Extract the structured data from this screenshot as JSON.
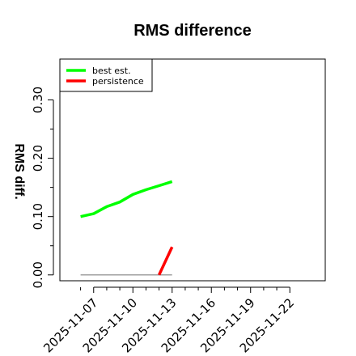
{
  "chart_data": {
    "type": "line",
    "title": "RMS difference",
    "xlabel": "",
    "ylabel": "RMS diff.",
    "ylim": [
      -0.01,
      0.37
    ],
    "xlim": [
      "2025-11-04T10:00",
      "2025-11-24T17:00"
    ],
    "y_ticks": [
      0.0,
      0.1,
      0.2,
      0.3
    ],
    "y_tick_labels": [
      "0.00",
      "0.10",
      "0.20",
      "0.30"
    ],
    "x_ticks": [
      "2025-11-07",
      "2025-11-10",
      "2025-11-13",
      "2025-11-16",
      "2025-11-19",
      "2025-11-22"
    ],
    "x_tick_labels": [
      "2025-11-07",
      "2025-11-10",
      "2025-11-13",
      "2025-11-16",
      "2025-11-19",
      "2025-11-22"
    ],
    "legend": {
      "position": "top-left"
    },
    "grid": false,
    "series": [
      {
        "name": "best est.",
        "color": "#00ff00",
        "x": [
          "2025-11-06",
          "2025-11-07",
          "2025-11-08",
          "2025-11-09",
          "2025-11-10",
          "2025-11-11",
          "2025-11-12",
          "2025-11-13"
        ],
        "y": [
          0.1,
          0.105,
          0.117,
          0.125,
          0.138,
          0.146,
          0.153,
          0.16
        ]
      },
      {
        "name": "persistence",
        "color": "#ff0000",
        "x": [
          "2025-11-12",
          "2025-11-13"
        ],
        "y": [
          0.0,
          0.048
        ]
      },
      {
        "name": "",
        "color": "#808080",
        "x": [
          "2025-11-06",
          "2025-11-13"
        ],
        "y": [
          0.0,
          0.0
        ]
      }
    ]
  }
}
